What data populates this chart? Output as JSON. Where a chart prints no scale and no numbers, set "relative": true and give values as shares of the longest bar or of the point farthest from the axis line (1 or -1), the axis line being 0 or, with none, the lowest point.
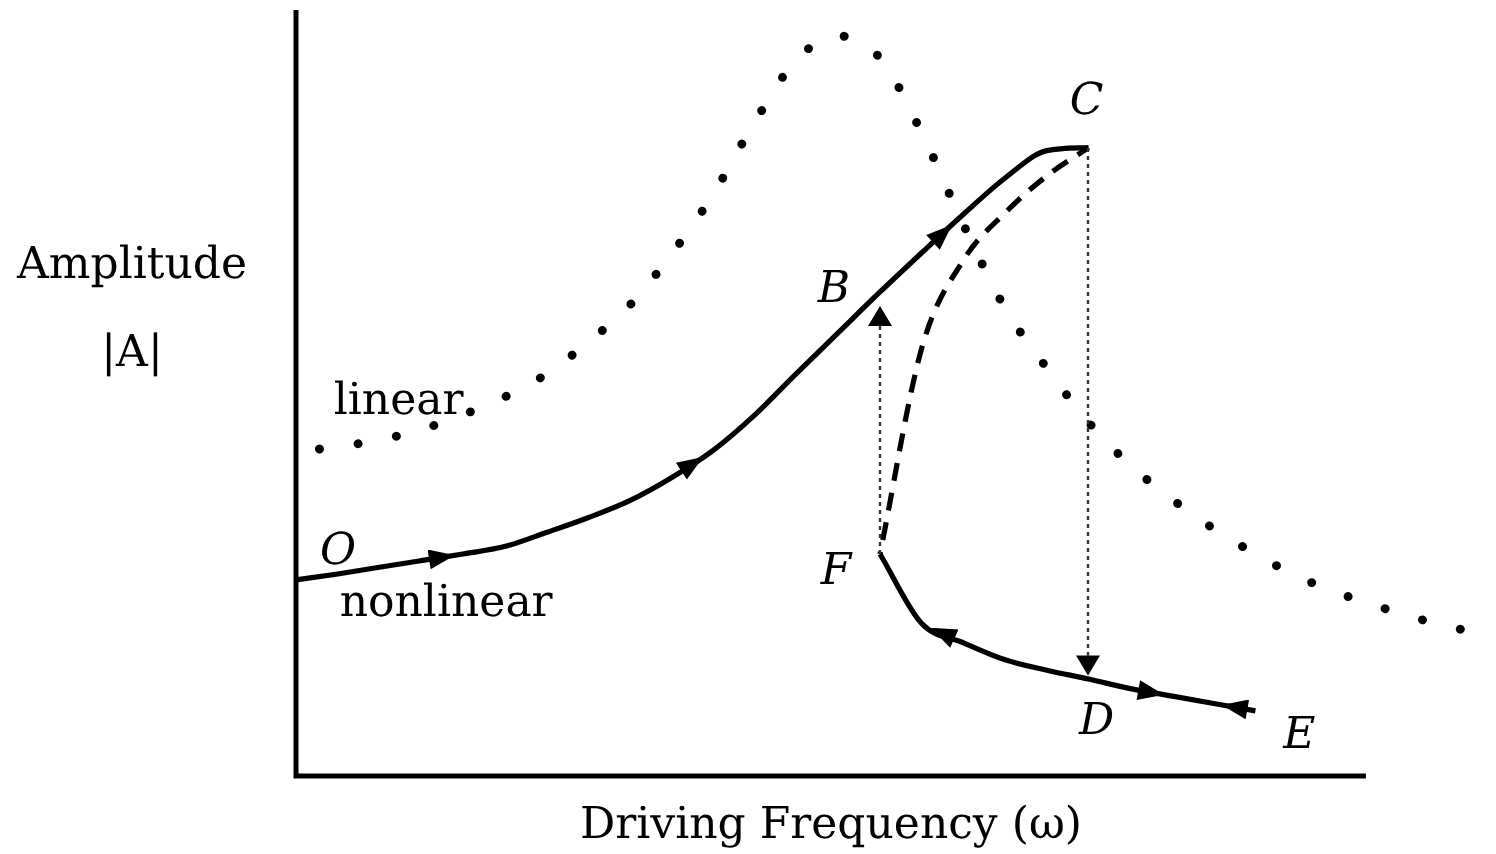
{
  "chart_data": {
    "type": "line",
    "relative": true,
    "xlabel": "Driving Frequency (ω)",
    "ylabel": "Amplitude |A|",
    "categories": [
      null,
      null,
      null,
      null,
      null,
      null,
      null,
      null,
      null,
      null,
      null,
      null,
      null,
      null,
      null,
      null,
      null,
      null,
      null,
      null,
      null,
      null,
      null,
      null,
      null,
      null,
      null,
      null,
      null
    ],
    "series": [
      {
        "name": "linear",
        "color": "#000000",
        "line_style": "dotted",
        "values": [
          0.438,
          0.445,
          0.454,
          0.468,
          0.488,
          0.512,
          0.543,
          0.586,
          0.636,
          0.705,
          0.786,
          0.884,
          0.968,
          1,
          0.97,
          0.869,
          0.745,
          0.632,
          0.551,
          0.478,
          0.42,
          0.374,
          0.334,
          0.3,
          0.27,
          0.247,
          0.228,
          0.211,
          0.197
        ]
      },
      {
        "name": "nonlinear",
        "color": "#000000",
        "line_style": "solid",
        "values": [
          0.265,
          0.273,
          0.282,
          0.291,
          0.3,
          0.31,
          0.329,
          0.349,
          0.372,
          0.403,
          0.44,
          0.488,
          0.544,
          0.599,
          0.654,
          0.707,
          0.759,
          0.808,
          0.845,
          0.849,
          null,
          null,
          null,
          null,
          null,
          null,
          null,
          null,
          null
        ]
      },
      {
        "color": "#000000",
        "line_style": "dashed",
        "values": [
          null,
          null,
          null,
          null,
          null,
          null,
          null,
          null,
          null,
          null,
          null,
          null,
          null,
          null,
          0.3,
          0.578,
          0.697,
          0.761,
          0.811,
          0.849,
          null,
          null,
          null,
          null,
          null,
          null,
          null,
          null,
          null
        ]
      },
      {
        "color": "#000000",
        "line_style": "solid",
        "values": [
          null,
          null,
          null,
          null,
          null,
          null,
          null,
          null,
          null,
          null,
          null,
          null,
          null,
          null,
          0.3,
          0.206,
          0.18,
          0.157,
          0.143,
          0.131,
          0.118,
          0.108,
          0.098,
          0.088,
          null,
          null,
          null,
          null,
          null
        ]
      }
    ],
    "annotations": [
      "O",
      "B",
      "C",
      "D",
      "E",
      "F"
    ]
  }
}
